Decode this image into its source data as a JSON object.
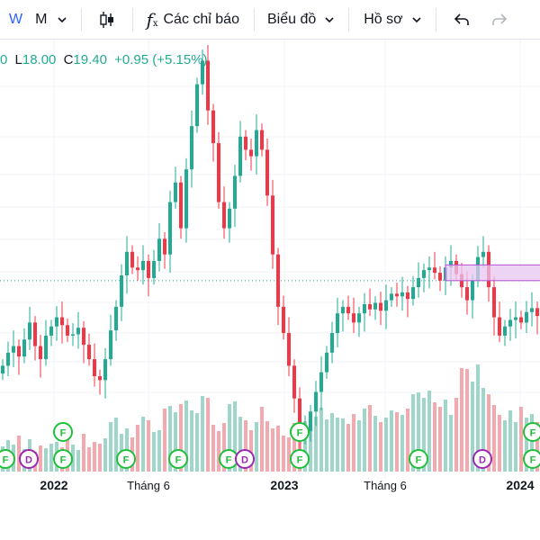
{
  "toolbar": {
    "interval_w": "W",
    "interval_m": "M",
    "indicators_label": "Các chỉ báo",
    "chart_type_label": "Biểu đồ",
    "profile_label": "Hồ sơ"
  },
  "ohlc": {
    "o_tail": "0",
    "l_key": "L",
    "l_val": "18.00",
    "c_key": "C",
    "c_val": "19.40",
    "change": "+0.95 (+5.15%)"
  },
  "colors": {
    "up": "#22ab94",
    "down": "#f23645",
    "up_vol": "#9fd6ca",
    "down_vol": "#f5a8ae",
    "rect_fill": "#e9c7f2",
    "rect_stroke": "#b44fd1",
    "f_event": "#1fbf3a",
    "d_event": "#9c27b0"
  },
  "chart_data": {
    "type": "candlestick",
    "x_labels": [
      "2022",
      "Tháng 6",
      "2023",
      "Tháng 6",
      "2024"
    ],
    "reference_level": 27.0,
    "y_range": [
      12,
      45
    ],
    "zone": {
      "from": 27.0,
      "to": 28.2
    },
    "prices": [
      20.5,
      21.5,
      22.0,
      21.2,
      22.5,
      23.8,
      22.0,
      21.0,
      22.8,
      23.5,
      24.2,
      23.6,
      22.8,
      22.9,
      23.4,
      22.1,
      21.0,
      19.7,
      19.4,
      21.0,
      23.2,
      25.0,
      27.4,
      29.2,
      28.0,
      27.8,
      28.5,
      27.2,
      28.5,
      30.2,
      29.0,
      33.0,
      34.5,
      31.0,
      35.5,
      38.8,
      42.0,
      43.8,
      40.0,
      37.5,
      33.0,
      31.0,
      32.5,
      35.0,
      38.0,
      37.0,
      36.5,
      38.5,
      37.0,
      33.5,
      29.0,
      25.0,
      23.0,
      20.5,
      18.0,
      15.0,
      15.5,
      17.0,
      18.5,
      20.0,
      21.5,
      23.0,
      24.5,
      25.0,
      24.5,
      23.8,
      24.5,
      25.2,
      24.8,
      25.3,
      24.7,
      25.5,
      26.0,
      25.8,
      26.1,
      25.6,
      26.5,
      27.2,
      27.8,
      28.0,
      27.6,
      27.0,
      28.0,
      28.5,
      27.5,
      26.5,
      25.5,
      27.0,
      28.8,
      29.2,
      26.5,
      24.2,
      22.8,
      23.5,
      24.0,
      24.2,
      23.8,
      24.6,
      24.9,
      24.3,
      23.9,
      23.6
    ],
    "volumes": [
      28,
      35,
      30,
      40,
      25,
      36,
      22,
      29,
      26,
      31,
      33,
      27,
      38,
      30,
      24,
      42,
      27,
      33,
      31,
      37,
      55,
      60,
      42,
      48,
      38,
      52,
      61,
      57,
      44,
      46,
      70,
      73,
      66,
      75,
      79,
      68,
      65,
      84,
      82,
      52,
      45,
      54,
      75,
      78,
      61,
      57,
      46,
      55,
      72,
      56,
      48,
      51,
      40,
      38,
      54,
      47,
      56,
      50,
      61,
      71,
      58,
      65,
      60,
      59,
      53,
      64,
      57,
      70,
      74,
      62,
      55,
      60,
      68,
      66,
      63,
      70,
      86,
      88,
      82,
      90,
      77,
      72,
      80,
      63,
      82,
      115,
      114,
      100,
      119,
      93,
      86,
      74,
      63,
      57,
      68,
      55,
      72,
      60,
      64,
      55,
      40,
      30
    ]
  },
  "events": [
    {
      "label": "F"
    },
    {
      "label": "D"
    },
    {
      "label": "F"
    },
    {
      "label": "F"
    },
    {
      "label": "F"
    },
    {
      "label": "F"
    },
    {
      "label": "F"
    },
    {
      "label": "D"
    },
    {
      "label": "F"
    },
    {
      "label": "F"
    },
    {
      "label": "F"
    },
    {
      "label": "D"
    },
    {
      "label": "F"
    },
    {
      "label": "F"
    }
  ]
}
